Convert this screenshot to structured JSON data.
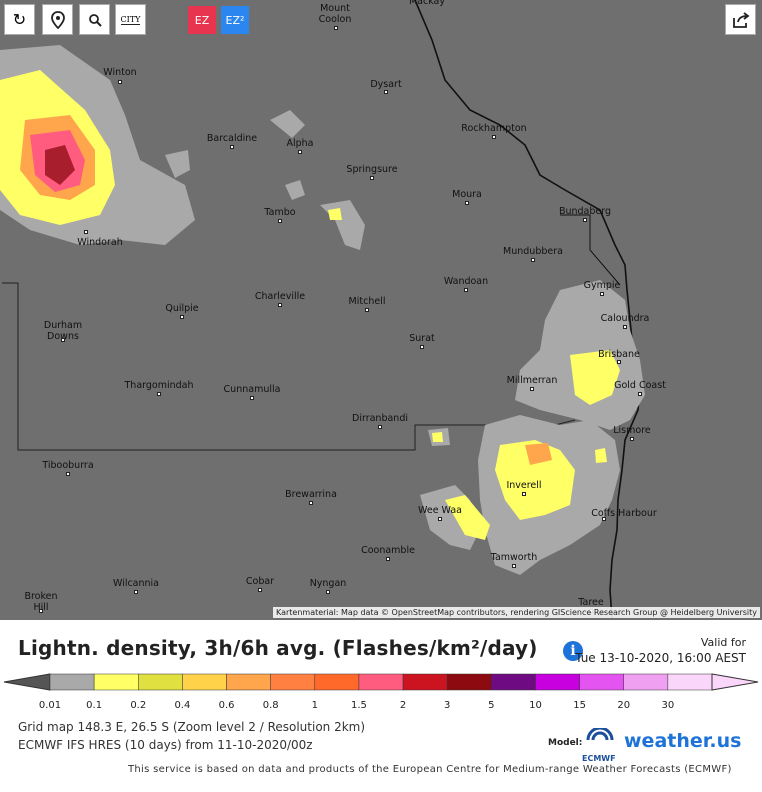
{
  "toolbar": {
    "refresh_icon": "refresh-icon",
    "pin_icon": "map-pin-icon",
    "zoom_icon": "zoom-icon",
    "city_label": "CITY",
    "ez_label": "EZ",
    "ez2_label": "EZ²",
    "share_icon": "share-icon",
    "ez_color": "#e8344e",
    "ez2_color": "#2b86f0"
  },
  "map": {
    "places": [
      {
        "name": "Mount Coolon",
        "line1": "Mount",
        "line2": "Coolon"
      },
      {
        "name": "Mackay",
        "line1": "Mackay"
      },
      {
        "name": "Winton",
        "line1": "Winton"
      },
      {
        "name": "Dysart",
        "line1": "Dysart"
      },
      {
        "name": "Barcaldine",
        "line1": "Barcaldine"
      },
      {
        "name": "Alpha",
        "line1": "Alpha"
      },
      {
        "name": "Rockhampton",
        "line1": "Rockhampton"
      },
      {
        "name": "Springsure",
        "line1": "Springsure"
      },
      {
        "name": "Moura",
        "line1": "Moura"
      },
      {
        "name": "Tambo",
        "line1": "Tambo"
      },
      {
        "name": "Bundaberg",
        "line1": "Bundaberg"
      },
      {
        "name": "Windorah",
        "line1": "Windorah"
      },
      {
        "name": "Mundubbera",
        "line1": "Mundubbera"
      },
      {
        "name": "Wandoan",
        "line1": "Wandoan"
      },
      {
        "name": "Gympie",
        "line1": "Gympie"
      },
      {
        "name": "Charleville",
        "line1": "Charleville"
      },
      {
        "name": "Mitchell",
        "line1": "Mitchell"
      },
      {
        "name": "Quilpie",
        "line1": "Quilpie"
      },
      {
        "name": "Caloundra",
        "line1": "Caloundra"
      },
      {
        "name": "Durham Downs",
        "line1": "Durham",
        "line2": "Downs"
      },
      {
        "name": "Surat",
        "line1": "Surat"
      },
      {
        "name": "Brisbane",
        "line1": "Brisbane"
      },
      {
        "name": "Millmerran",
        "line1": "Millmerran"
      },
      {
        "name": "Gold Coast",
        "line1": "Gold Coast"
      },
      {
        "name": "Thargomindah",
        "line1": "Thargomindah"
      },
      {
        "name": "Cunnamulla",
        "line1": "Cunnamulla"
      },
      {
        "name": "Dirranbandi",
        "line1": "Dirranbandi"
      },
      {
        "name": "Lismore",
        "line1": "Lismore"
      },
      {
        "name": "Tibooburra",
        "line1": "Tibooburra"
      },
      {
        "name": "Inverell",
        "line1": "Inverell"
      },
      {
        "name": "Brewarrina",
        "line1": "Brewarrina"
      },
      {
        "name": "Wee Waa",
        "line1": "Wee Waa"
      },
      {
        "name": "Coffs Harbour",
        "line1": "Coffs Harbour"
      },
      {
        "name": "Coonamble",
        "line1": "Coonamble"
      },
      {
        "name": "Tamworth",
        "line1": "Tamworth"
      },
      {
        "name": "Wilcannia",
        "line1": "Wilcannia"
      },
      {
        "name": "Cobar",
        "line1": "Cobar"
      },
      {
        "name": "Nyngan",
        "line1": "Nyngan"
      },
      {
        "name": "Broken Hill",
        "line1": "Broken",
        "line2": "Hill"
      },
      {
        "name": "Taree",
        "line1": "Taree"
      }
    ],
    "attribution": "Kartenmaterial: Map data © OpenStreetMap contributors, rendering GIScience Research Group @ Heidelberg University",
    "background_color": "#6f6f6f"
  },
  "title": "Lightn. density, 3h/6h avg. (Flashes/km²/day)",
  "valid": {
    "label": "Valid for",
    "time": "Tue 13-10-2020, 16:00 AEST"
  },
  "legend": {
    "ticks": [
      "0.01",
      "0.1",
      "0.2",
      "0.4",
      "0.6",
      "0.8",
      "1",
      "1.5",
      "2",
      "3",
      "5",
      "10",
      "15",
      "20",
      "30"
    ],
    "colors": [
      "#a9a9a9",
      "#ffff66",
      "#e0e040",
      "#ffd24a",
      "#ffa64d",
      "#ff8040",
      "#ff6a2a",
      "#ff5c80",
      "#cc1420",
      "#8c0a10",
      "#6e0a82",
      "#c800e0",
      "#e454f0",
      "#f0a0f0",
      "#fbd6fb"
    ]
  },
  "meta": {
    "line1": "Grid map 148.3 E, 26.5 S (Zoom level 2 / Resolution 2km)",
    "line2": "ECMWF IFS HRES (10 days) from 11-10-2020/00z"
  },
  "model": {
    "label": "Model:",
    "ecmwf": "ECMWF",
    "brand": "weather.us"
  },
  "footer": "This service is based on data and products of the European Centre for Medium-range Weather Forecasts (ECMWF)"
}
